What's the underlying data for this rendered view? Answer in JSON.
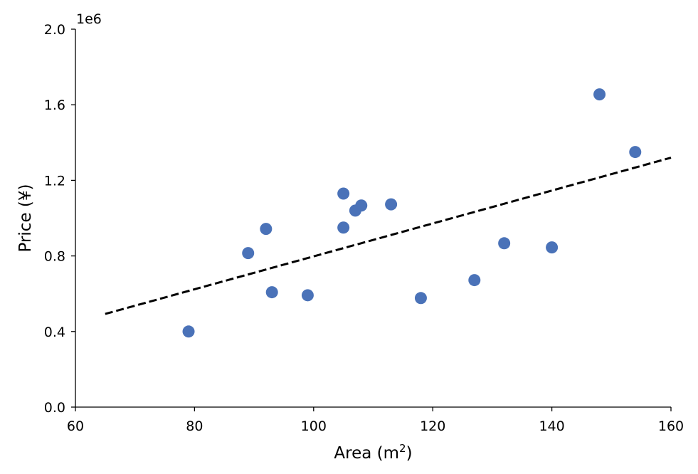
{
  "chart_data": {
    "type": "scatter",
    "title": "",
    "xlabel": "Area (m",
    "xlabel_superscript": "2",
    "xlabel_suffix": ")",
    "ylabel": "Price (¥)",
    "y_offset_label": "1e6",
    "xlim": [
      60,
      160
    ],
    "ylim": [
      0,
      2000000
    ],
    "xticks": [
      60,
      80,
      100,
      120,
      140,
      160
    ],
    "xtick_labels": [
      "60",
      "80",
      "100",
      "120",
      "140",
      "160"
    ],
    "yticks": [
      0,
      400000,
      800000,
      1200000,
      1600000,
      2000000
    ],
    "ytick_labels": [
      "0.0",
      "0.4",
      "0.8",
      "1.2",
      "1.6",
      "2.0"
    ],
    "grid": false,
    "point_color": "#4a72b8",
    "trend_color": "#000000",
    "points": [
      {
        "x": 79,
        "y": 400000
      },
      {
        "x": 89,
        "y": 815000
      },
      {
        "x": 92,
        "y": 943000
      },
      {
        "x": 93,
        "y": 608000
      },
      {
        "x": 99,
        "y": 592000
      },
      {
        "x": 105,
        "y": 1130000
      },
      {
        "x": 105,
        "y": 950000
      },
      {
        "x": 107,
        "y": 1040000
      },
      {
        "x": 108,
        "y": 1067000
      },
      {
        "x": 113,
        "y": 1073000
      },
      {
        "x": 118,
        "y": 577000
      },
      {
        "x": 127,
        "y": 672000
      },
      {
        "x": 132,
        "y": 867000
      },
      {
        "x": 140,
        "y": 845000
      },
      {
        "x": 148,
        "y": 1655000
      },
      {
        "x": 154,
        "y": 1350000
      }
    ],
    "trendline": {
      "style": "dashed",
      "x": [
        65,
        160
      ],
      "y": [
        493000,
        1320000
      ]
    }
  }
}
